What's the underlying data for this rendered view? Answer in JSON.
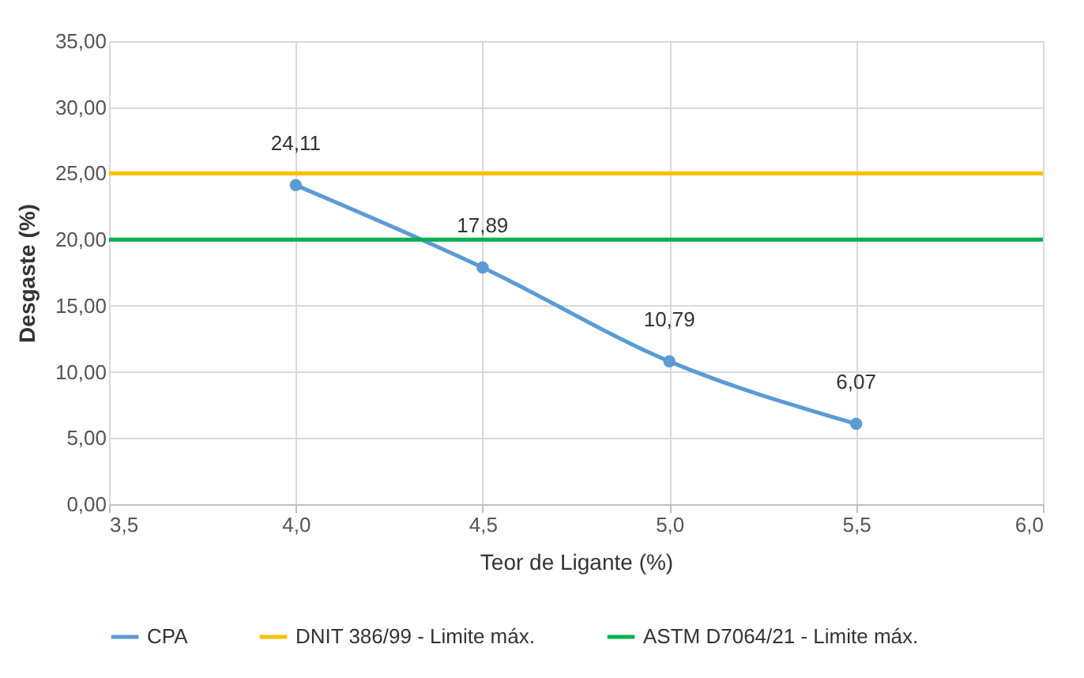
{
  "chart_data": {
    "type": "line",
    "xlabel": "Teor de Ligante (%)",
    "ylabel": "Desgaste (%)",
    "xlim": [
      3.5,
      6.0
    ],
    "xticks": [
      {
        "value": 3.5,
        "label": "3,5"
      },
      {
        "value": 4.0,
        "label": "4,0"
      },
      {
        "value": 4.5,
        "label": "4,5"
      },
      {
        "value": 5.0,
        "label": "5,0"
      },
      {
        "value": 5.5,
        "label": "5,5"
      },
      {
        "value": 6.0,
        "label": "6,0"
      }
    ],
    "ylim": [
      0,
      35
    ],
    "yticks": [
      {
        "value": 0,
        "label": "0,00"
      },
      {
        "value": 5,
        "label": "5,00"
      },
      {
        "value": 10,
        "label": "10,00"
      },
      {
        "value": 15,
        "label": "15,00"
      },
      {
        "value": 20,
        "label": "20,00"
      },
      {
        "value": 25,
        "label": "25,00"
      },
      {
        "value": 30,
        "label": "30,00"
      },
      {
        "value": 35,
        "label": "35,00"
      }
    ],
    "grid": true,
    "legend": "bottom",
    "line_style": "solid",
    "series": [
      {
        "name": "CPA",
        "color": "#5b9bd5",
        "marker": "circle",
        "x": [
          4.0,
          4.5,
          5.0,
          5.5
        ],
        "values": [
          24.11,
          17.89,
          10.79,
          6.07
        ],
        "value_labels": [
          "24,11",
          "17,89",
          "10,79",
          "6,07"
        ]
      },
      {
        "name": "DNIT 386/99 - Limite máx.",
        "color": "#ffc000",
        "marker": "none",
        "x": [
          3.5,
          6.0
        ],
        "values": [
          25,
          25
        ]
      },
      {
        "name": "ASTM D7064/21 - Limite máx.",
        "color": "#00b050",
        "marker": "none",
        "x": [
          3.5,
          6.0
        ],
        "values": [
          20,
          20
        ]
      }
    ]
  }
}
